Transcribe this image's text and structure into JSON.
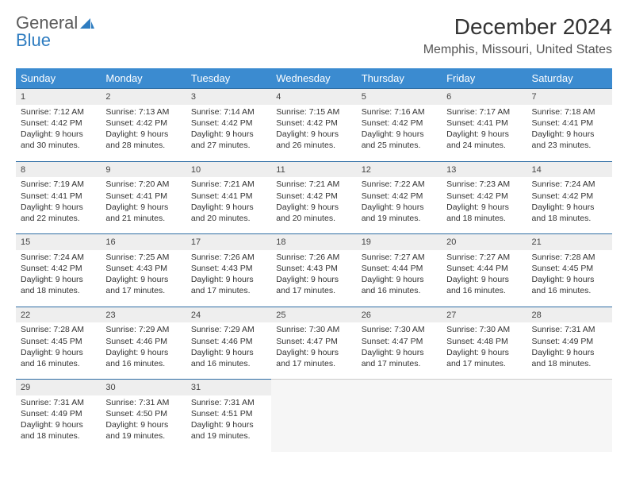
{
  "brand": {
    "part1": "General",
    "part2": "Blue"
  },
  "title": "December 2024",
  "location": "Memphis, Missouri, United States",
  "colors": {
    "header_bg": "#3b8bd0",
    "header_text": "#ffffff",
    "daynum_bg": "#eeeeee",
    "daynum_border": "#2e6da4",
    "body_bg": "#ffffff",
    "text": "#333333",
    "brand_gray": "#5a5a5a",
    "brand_blue": "#2e7cc0"
  },
  "typography": {
    "title_fontsize": 28,
    "location_fontsize": 16,
    "header_fontsize": 13,
    "cell_fontsize": 10.5
  },
  "weekdays": [
    "Sunday",
    "Monday",
    "Tuesday",
    "Wednesday",
    "Thursday",
    "Friday",
    "Saturday"
  ],
  "weeks": [
    [
      {
        "n": "1",
        "sr": "Sunrise: 7:12 AM",
        "ss": "Sunset: 4:42 PM",
        "d1": "Daylight: 9 hours",
        "d2": "and 30 minutes."
      },
      {
        "n": "2",
        "sr": "Sunrise: 7:13 AM",
        "ss": "Sunset: 4:42 PM",
        "d1": "Daylight: 9 hours",
        "d2": "and 28 minutes."
      },
      {
        "n": "3",
        "sr": "Sunrise: 7:14 AM",
        "ss": "Sunset: 4:42 PM",
        "d1": "Daylight: 9 hours",
        "d2": "and 27 minutes."
      },
      {
        "n": "4",
        "sr": "Sunrise: 7:15 AM",
        "ss": "Sunset: 4:42 PM",
        "d1": "Daylight: 9 hours",
        "d2": "and 26 minutes."
      },
      {
        "n": "5",
        "sr": "Sunrise: 7:16 AM",
        "ss": "Sunset: 4:42 PM",
        "d1": "Daylight: 9 hours",
        "d2": "and 25 minutes."
      },
      {
        "n": "6",
        "sr": "Sunrise: 7:17 AM",
        "ss": "Sunset: 4:41 PM",
        "d1": "Daylight: 9 hours",
        "d2": "and 24 minutes."
      },
      {
        "n": "7",
        "sr": "Sunrise: 7:18 AM",
        "ss": "Sunset: 4:41 PM",
        "d1": "Daylight: 9 hours",
        "d2": "and 23 minutes."
      }
    ],
    [
      {
        "n": "8",
        "sr": "Sunrise: 7:19 AM",
        "ss": "Sunset: 4:41 PM",
        "d1": "Daylight: 9 hours",
        "d2": "and 22 minutes."
      },
      {
        "n": "9",
        "sr": "Sunrise: 7:20 AM",
        "ss": "Sunset: 4:41 PM",
        "d1": "Daylight: 9 hours",
        "d2": "and 21 minutes."
      },
      {
        "n": "10",
        "sr": "Sunrise: 7:21 AM",
        "ss": "Sunset: 4:41 PM",
        "d1": "Daylight: 9 hours",
        "d2": "and 20 minutes."
      },
      {
        "n": "11",
        "sr": "Sunrise: 7:21 AM",
        "ss": "Sunset: 4:42 PM",
        "d1": "Daylight: 9 hours",
        "d2": "and 20 minutes."
      },
      {
        "n": "12",
        "sr": "Sunrise: 7:22 AM",
        "ss": "Sunset: 4:42 PM",
        "d1": "Daylight: 9 hours",
        "d2": "and 19 minutes."
      },
      {
        "n": "13",
        "sr": "Sunrise: 7:23 AM",
        "ss": "Sunset: 4:42 PM",
        "d1": "Daylight: 9 hours",
        "d2": "and 18 minutes."
      },
      {
        "n": "14",
        "sr": "Sunrise: 7:24 AM",
        "ss": "Sunset: 4:42 PM",
        "d1": "Daylight: 9 hours",
        "d2": "and 18 minutes."
      }
    ],
    [
      {
        "n": "15",
        "sr": "Sunrise: 7:24 AM",
        "ss": "Sunset: 4:42 PM",
        "d1": "Daylight: 9 hours",
        "d2": "and 18 minutes."
      },
      {
        "n": "16",
        "sr": "Sunrise: 7:25 AM",
        "ss": "Sunset: 4:43 PM",
        "d1": "Daylight: 9 hours",
        "d2": "and 17 minutes."
      },
      {
        "n": "17",
        "sr": "Sunrise: 7:26 AM",
        "ss": "Sunset: 4:43 PM",
        "d1": "Daylight: 9 hours",
        "d2": "and 17 minutes."
      },
      {
        "n": "18",
        "sr": "Sunrise: 7:26 AM",
        "ss": "Sunset: 4:43 PM",
        "d1": "Daylight: 9 hours",
        "d2": "and 17 minutes."
      },
      {
        "n": "19",
        "sr": "Sunrise: 7:27 AM",
        "ss": "Sunset: 4:44 PM",
        "d1": "Daylight: 9 hours",
        "d2": "and 16 minutes."
      },
      {
        "n": "20",
        "sr": "Sunrise: 7:27 AM",
        "ss": "Sunset: 4:44 PM",
        "d1": "Daylight: 9 hours",
        "d2": "and 16 minutes."
      },
      {
        "n": "21",
        "sr": "Sunrise: 7:28 AM",
        "ss": "Sunset: 4:45 PM",
        "d1": "Daylight: 9 hours",
        "d2": "and 16 minutes."
      }
    ],
    [
      {
        "n": "22",
        "sr": "Sunrise: 7:28 AM",
        "ss": "Sunset: 4:45 PM",
        "d1": "Daylight: 9 hours",
        "d2": "and 16 minutes."
      },
      {
        "n": "23",
        "sr": "Sunrise: 7:29 AM",
        "ss": "Sunset: 4:46 PM",
        "d1": "Daylight: 9 hours",
        "d2": "and 16 minutes."
      },
      {
        "n": "24",
        "sr": "Sunrise: 7:29 AM",
        "ss": "Sunset: 4:46 PM",
        "d1": "Daylight: 9 hours",
        "d2": "and 16 minutes."
      },
      {
        "n": "25",
        "sr": "Sunrise: 7:30 AM",
        "ss": "Sunset: 4:47 PM",
        "d1": "Daylight: 9 hours",
        "d2": "and 17 minutes."
      },
      {
        "n": "26",
        "sr": "Sunrise: 7:30 AM",
        "ss": "Sunset: 4:47 PM",
        "d1": "Daylight: 9 hours",
        "d2": "and 17 minutes."
      },
      {
        "n": "27",
        "sr": "Sunrise: 7:30 AM",
        "ss": "Sunset: 4:48 PM",
        "d1": "Daylight: 9 hours",
        "d2": "and 17 minutes."
      },
      {
        "n": "28",
        "sr": "Sunrise: 7:31 AM",
        "ss": "Sunset: 4:49 PM",
        "d1": "Daylight: 9 hours",
        "d2": "and 18 minutes."
      }
    ],
    [
      {
        "n": "29",
        "sr": "Sunrise: 7:31 AM",
        "ss": "Sunset: 4:49 PM",
        "d1": "Daylight: 9 hours",
        "d2": "and 18 minutes."
      },
      {
        "n": "30",
        "sr": "Sunrise: 7:31 AM",
        "ss": "Sunset: 4:50 PM",
        "d1": "Daylight: 9 hours",
        "d2": "and 19 minutes."
      },
      {
        "n": "31",
        "sr": "Sunrise: 7:31 AM",
        "ss": "Sunset: 4:51 PM",
        "d1": "Daylight: 9 hours",
        "d2": "and 19 minutes."
      },
      null,
      null,
      null,
      null
    ]
  ]
}
